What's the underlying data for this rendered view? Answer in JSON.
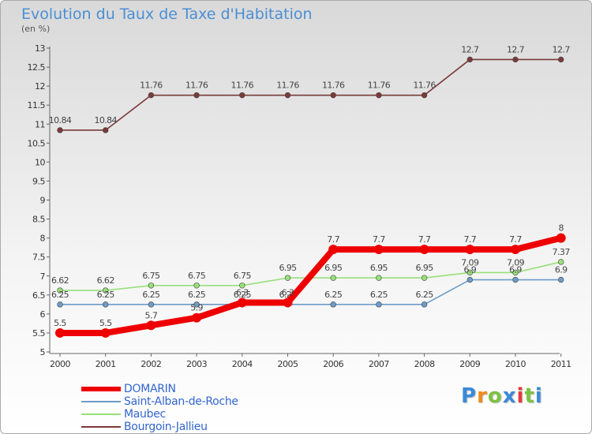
{
  "chart_data": {
    "type": "line",
    "title": "Evolution du Taux de Taxe d'Habitation",
    "ylabel": "(en %)",
    "xlabel": "",
    "ylim": [
      5,
      13
    ],
    "yticks": [
      "5",
      "5.5",
      "6",
      "6.5",
      "7",
      "7.5",
      "8",
      "8.5",
      "9",
      "9.5",
      "10",
      "10.5",
      "11",
      "11.5",
      "12",
      "12.5",
      "13"
    ],
    "categories": [
      "2000",
      "2001",
      "2002",
      "2003",
      "2004",
      "2005",
      "2006",
      "2007",
      "2008",
      "2009",
      "2010",
      "2011"
    ],
    "series": [
      {
        "name": "Bourgoin-Jallieu",
        "color": "#7a3a3a",
        "values": [
          10.84,
          10.84,
          11.76,
          11.76,
          11.76,
          11.76,
          11.76,
          11.76,
          11.76,
          12.7,
          12.7,
          12.7
        ],
        "labels": [
          "10.84",
          "10.84",
          "11.76",
          "11.76",
          "11.76",
          "11.76",
          "11.76",
          "11.76",
          "11.76",
          "12.7",
          "12.7",
          "12.7"
        ]
      },
      {
        "name": "Maubec",
        "color": "#99e07a",
        "values": [
          6.62,
          6.62,
          6.75,
          6.75,
          6.75,
          6.95,
          6.95,
          6.95,
          6.95,
          7.09,
          7.09,
          7.37
        ],
        "labels": [
          "6.62",
          "6.62",
          "6.75",
          "6.75",
          "6.75",
          "6.95",
          "6.95",
          "6.95",
          "6.95",
          "7.09",
          "7.09",
          "7.37"
        ]
      },
      {
        "name": "Saint-Alban-de-Roche",
        "color": "#6c9cc8",
        "values": [
          6.25,
          6.25,
          6.25,
          6.25,
          6.25,
          6.25,
          6.25,
          6.25,
          6.25,
          6.9,
          6.9,
          6.9
        ],
        "labels": [
          "6.25",
          "6.25",
          "6.25",
          "6.25",
          "6.25",
          "6.25",
          "6.25",
          "6.25",
          "6.25",
          "6.9",
          "6.9",
          "6.9"
        ]
      },
      {
        "name": "DOMARIN",
        "color": "#ee0000",
        "values": [
          5.5,
          5.5,
          5.7,
          5.9,
          6.3,
          6.3,
          7.7,
          7.7,
          7.7,
          7.7,
          7.7,
          8
        ],
        "labels": [
          "5.5",
          "5.5",
          "5.7",
          "5.9",
          "6.3",
          "6.3",
          "7.7",
          "7.7",
          "7.7",
          "7.7",
          "7.7",
          "8"
        ]
      }
    ],
    "legend": [
      "DOMARIN",
      "Saint-Alban-de-Roche",
      "Maubec",
      "Bourgoin-Jallieu"
    ],
    "legend_position": "bottom-left",
    "grid": false
  },
  "logo": {
    "text": "Proxiti"
  }
}
